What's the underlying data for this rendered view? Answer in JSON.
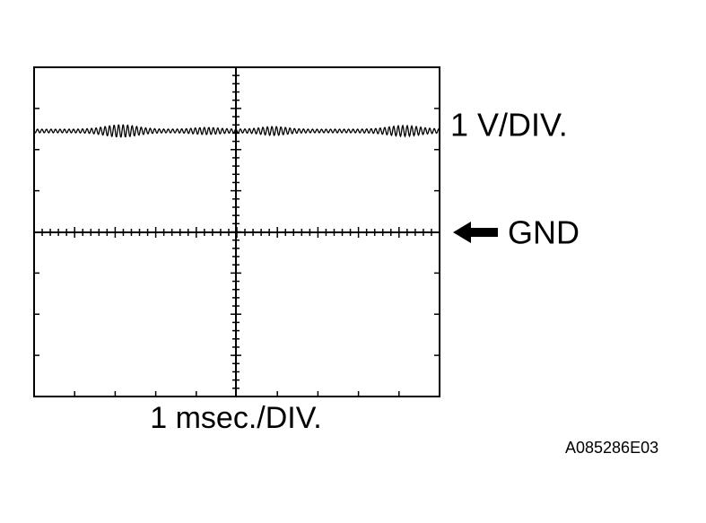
{
  "labels": {
    "volts_per_div": "1 V/DIV.",
    "ground": "GND",
    "time_per_div": "1 msec./DIV.",
    "figure_id": "A085286E03"
  }
}
